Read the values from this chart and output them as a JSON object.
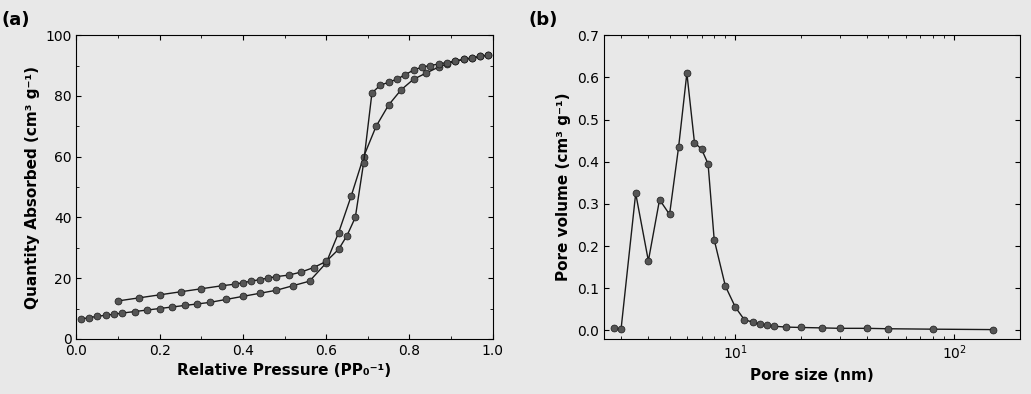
{
  "plot_a": {
    "label": "(a)",
    "xlabel": "Relative Pressure (PP₀⁻¹)",
    "ylabel": "Quantity Absorbed (cm³ g⁻¹)",
    "xlim": [
      0.0,
      1.0
    ],
    "ylim": [
      0,
      100
    ],
    "xticks": [
      0.0,
      0.2,
      0.4,
      0.6,
      0.8,
      1.0
    ],
    "yticks": [
      0,
      20,
      40,
      60,
      80,
      100
    ],
    "adsorption_x": [
      0.01,
      0.03,
      0.05,
      0.07,
      0.09,
      0.11,
      0.14,
      0.17,
      0.2,
      0.23,
      0.26,
      0.29,
      0.32,
      0.36,
      0.4,
      0.44,
      0.48,
      0.52,
      0.56,
      0.6,
      0.63,
      0.66,
      0.69,
      0.72,
      0.75,
      0.78,
      0.81,
      0.84,
      0.87,
      0.89,
      0.91,
      0.93,
      0.95,
      0.97,
      0.99
    ],
    "adsorption_y": [
      6.5,
      7.0,
      7.4,
      7.8,
      8.1,
      8.5,
      9.0,
      9.5,
      10.0,
      10.5,
      11.0,
      11.5,
      12.0,
      13.0,
      14.0,
      15.0,
      16.0,
      17.5,
      19.0,
      25.0,
      35.0,
      47.0,
      60.0,
      70.0,
      77.0,
      82.0,
      85.5,
      87.5,
      89.5,
      90.5,
      91.5,
      92.0,
      92.5,
      93.0,
      93.5
    ],
    "desorption_x": [
      0.99,
      0.97,
      0.95,
      0.93,
      0.91,
      0.89,
      0.87,
      0.85,
      0.83,
      0.81,
      0.79,
      0.77,
      0.75,
      0.73,
      0.71,
      0.69,
      0.67,
      0.65,
      0.63,
      0.6,
      0.57,
      0.54,
      0.51,
      0.48,
      0.46,
      0.44,
      0.42,
      0.4,
      0.38,
      0.35,
      0.3,
      0.25,
      0.2,
      0.15,
      0.1
    ],
    "desorption_y": [
      93.5,
      93.0,
      92.5,
      92.0,
      91.5,
      91.0,
      90.5,
      90.0,
      89.5,
      88.5,
      87.0,
      85.5,
      84.5,
      83.5,
      81.0,
      58.0,
      40.0,
      34.0,
      29.5,
      25.5,
      23.5,
      22.0,
      21.0,
      20.5,
      20.0,
      19.5,
      19.0,
      18.5,
      18.0,
      17.5,
      16.5,
      15.5,
      14.5,
      13.5,
      12.5
    ]
  },
  "plot_b": {
    "label": "(b)",
    "xlabel": "Pore size (nm)",
    "ylabel": "Pore volume (cm³ g⁻¹)",
    "xlim": [
      2.5,
      200
    ],
    "ylim": [
      -0.02,
      0.7
    ],
    "yticks": [
      0.0,
      0.1,
      0.2,
      0.3,
      0.4,
      0.5,
      0.6,
      0.7
    ],
    "pore_x": [
      2.8,
      3.0,
      3.5,
      4.0,
      4.5,
      5.0,
      5.5,
      6.0,
      6.5,
      7.0,
      7.5,
      8.0,
      9.0,
      10.0,
      11.0,
      12.0,
      13.0,
      14.0,
      15.0,
      17.0,
      20.0,
      25.0,
      30.0,
      40.0,
      50.0,
      80.0,
      150.0
    ],
    "pore_y": [
      0.005,
      0.003,
      0.325,
      0.165,
      0.31,
      0.275,
      0.435,
      0.61,
      0.445,
      0.43,
      0.395,
      0.215,
      0.105,
      0.055,
      0.025,
      0.02,
      0.015,
      0.012,
      0.01,
      0.008,
      0.007,
      0.006,
      0.005,
      0.005,
      0.004,
      0.003,
      0.002
    ]
  },
  "line_color": "#1a1a1a",
  "marker_facecolor": "#555555",
  "marker_size": 5,
  "line_width": 1.0,
  "label_fontsize": 11,
  "tick_fontsize": 10,
  "panel_label_fontsize": 13,
  "bg_color": "#e8e8e8"
}
